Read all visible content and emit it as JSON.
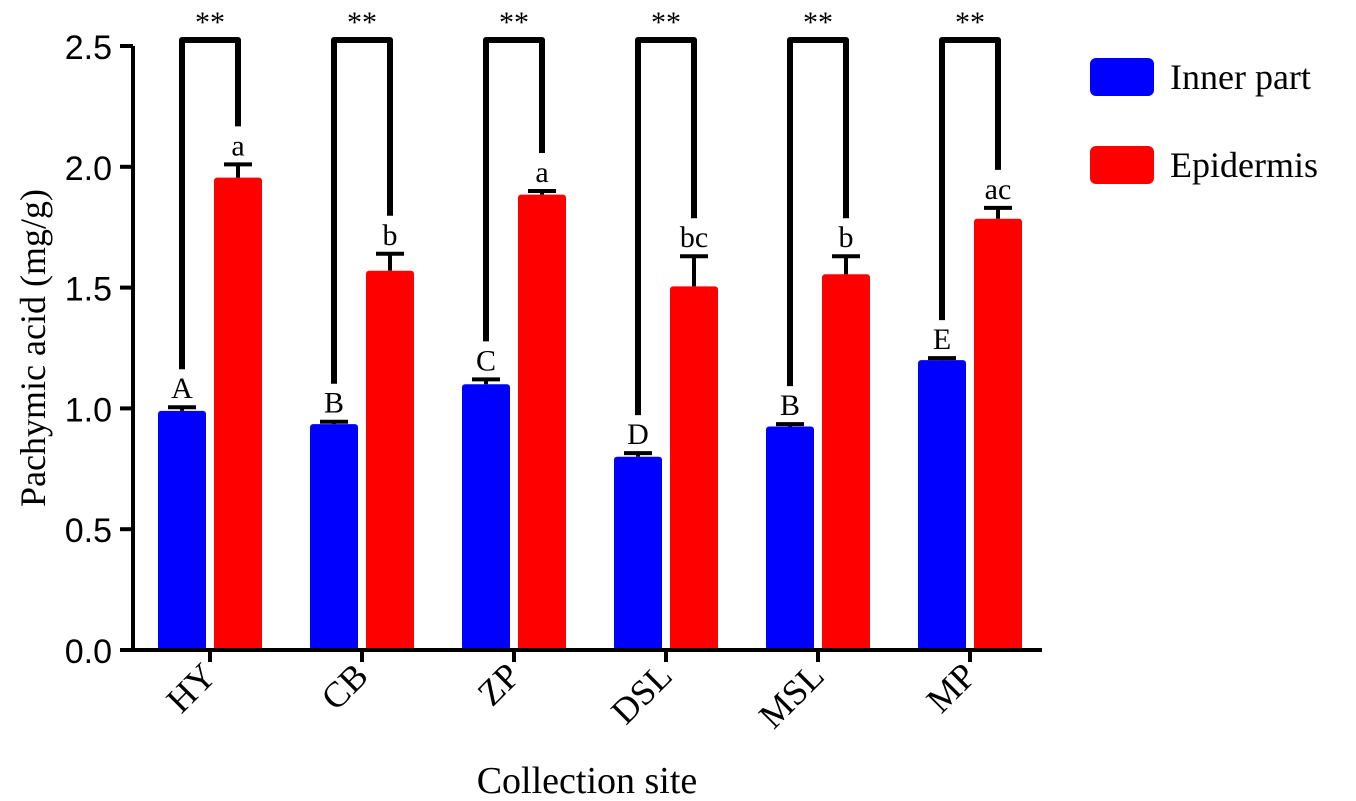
{
  "chart_data": {
    "type": "bar",
    "xlabel": "Collection site",
    "ylabel": "Pachymic acid (mg/g)",
    "ylim": [
      0,
      2.5
    ],
    "yticks": [
      "0.0",
      "0.5",
      "1.0",
      "1.5",
      "2.0",
      "2.5"
    ],
    "categories": [
      "HY",
      "CB",
      "ZP",
      "DSL",
      "MSL",
      "MP"
    ],
    "legend_position": "top-right",
    "grid": false,
    "series": [
      {
        "name": "Inner part",
        "color": "#0000ff",
        "values": [
          0.99,
          0.935,
          1.1,
          0.8,
          0.925,
          1.2
        ],
        "errors": [
          0.015,
          0.01,
          0.02,
          0.015,
          0.01,
          0.008
        ],
        "letters": [
          "A",
          "B",
          "C",
          "D",
          "B",
          "E"
        ]
      },
      {
        "name": "Epidermis",
        "color": "#ff0000",
        "values": [
          1.955,
          1.57,
          1.885,
          1.505,
          1.555,
          1.785
        ],
        "errors": [
          0.055,
          0.07,
          0.015,
          0.125,
          0.075,
          0.045
        ],
        "letters": [
          "a",
          "b",
          "a",
          "bc",
          "b",
          "ac"
        ]
      }
    ],
    "significance": [
      "**",
      "**",
      "**",
      "**",
      "**",
      "**"
    ]
  }
}
